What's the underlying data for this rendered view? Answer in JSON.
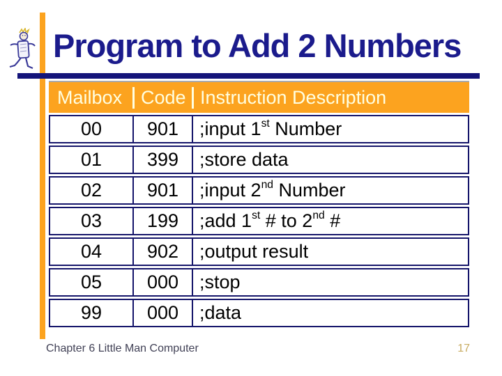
{
  "slide": {
    "title": "Program to Add 2 Numbers",
    "footer_left": "Chapter 6 Little Man Computer",
    "page_number": "17"
  },
  "icons": {
    "logo": "little-man-figure-icon"
  },
  "colors": {
    "accent-orange": "#FCA31F",
    "title-navy": "#1B1B8C",
    "rule-navy": "#14147A",
    "border-navy": "#14146A",
    "header-cream": "#FFFFE1",
    "footer-gray": "#404055",
    "pagenum-gold": "#C8AC62"
  },
  "table": {
    "headers": [
      "Mailbox",
      "Code",
      "Instruction Description"
    ],
    "rows": [
      {
        "mailbox": "00",
        "code": "901",
        "instruction": [
          {
            "t": ";input 1"
          },
          {
            "t": "st",
            "sup": true
          },
          {
            "t": " Number"
          }
        ]
      },
      {
        "mailbox": "01",
        "code": "399",
        "instruction": [
          {
            "t": ";store data"
          }
        ]
      },
      {
        "mailbox": "02",
        "code": "901",
        "instruction": [
          {
            "t": ";input 2"
          },
          {
            "t": "nd",
            "sup": true
          },
          {
            "t": " Number"
          }
        ]
      },
      {
        "mailbox": "03",
        "code": "199",
        "instruction": [
          {
            "t": ";add 1"
          },
          {
            "t": "st",
            "sup": true
          },
          {
            "t": " # to 2"
          },
          {
            "t": "nd",
            "sup": true
          },
          {
            "t": " #"
          }
        ]
      },
      {
        "mailbox": "04",
        "code": "902",
        "instruction": [
          {
            "t": ";output result"
          }
        ]
      },
      {
        "mailbox": "05",
        "code": "000",
        "instruction": [
          {
            "t": ";stop"
          }
        ]
      },
      {
        "mailbox": "99",
        "code": "000",
        "instruction": [
          {
            "t": ";data"
          }
        ]
      }
    ]
  }
}
